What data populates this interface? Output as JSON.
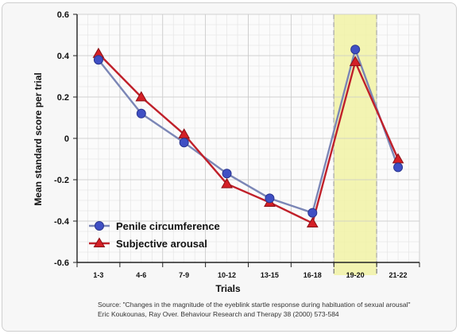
{
  "chart_data": {
    "type": "line",
    "title": "",
    "xlabel": "Trials",
    "ylabel": "Mean standard score per trial",
    "categories": [
      "1-3",
      "4-6",
      "7-9",
      "10-12",
      "13-15",
      "16-18",
      "19-20",
      "21-22"
    ],
    "ylim": [
      -0.6,
      0.6
    ],
    "yticks": [
      "0.6",
      "0.4",
      "0.2",
      "0",
      "-0.2",
      "-0.4",
      "-0.6"
    ],
    "ytick_values": [
      0.6,
      0.4,
      0.2,
      0,
      -0.2,
      -0.4,
      -0.6
    ],
    "grid": true,
    "legend_position": "bottom-left",
    "highlight_category": "19-20",
    "series": [
      {
        "name": "Penile circumference",
        "marker": "circle",
        "color": "#7b86b6",
        "marker_color": "#3f4fc4",
        "values": [
          0.38,
          0.12,
          -0.02,
          -0.17,
          -0.29,
          -0.36,
          0.43,
          -0.14
        ]
      },
      {
        "name": "Subjective arousal",
        "marker": "triangle",
        "color": "#c0202a",
        "marker_color": "#d41f26",
        "values": [
          0.41,
          0.2,
          0.02,
          -0.22,
          -0.31,
          -0.41,
          0.37,
          -0.1
        ]
      }
    ],
    "source_line1": "Source: \"Changes in the magnitude of the eyeblink startle response during habituation of sexual arousal\"",
    "source_line2": "Eric Koukounas, Ray Over. Behaviour Research and Therapy 38 (2000) 573-584"
  }
}
